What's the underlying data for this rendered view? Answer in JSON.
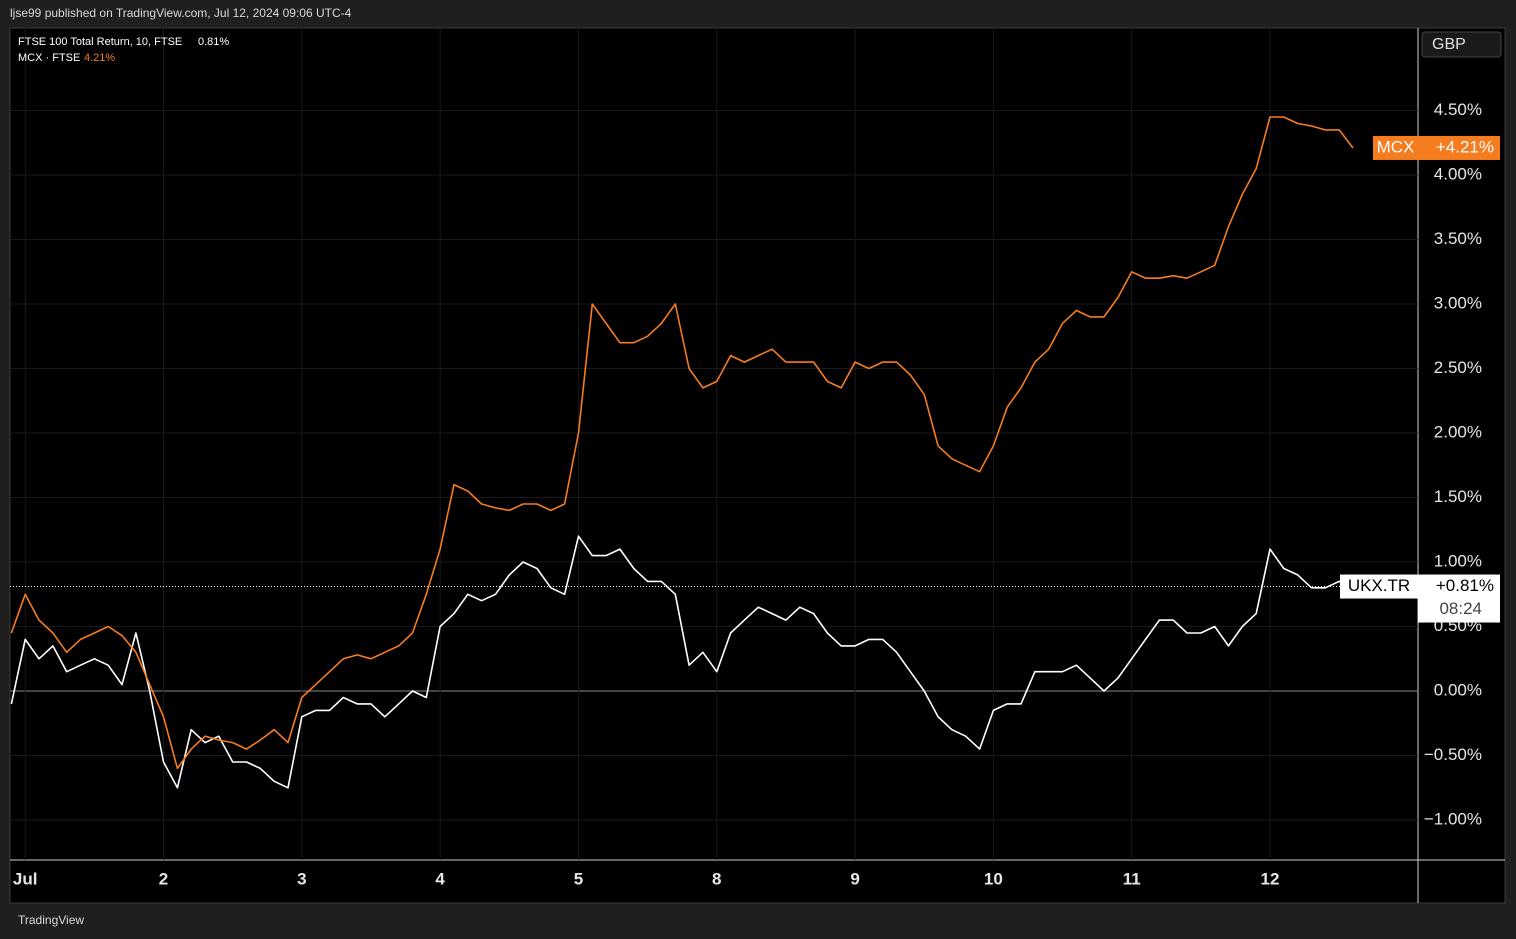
{
  "chart_data": {
    "type": "line",
    "header": "ljse99 published on TradingView.com, Jul 12, 2024 09:06 UTC-4",
    "currency": "GBP",
    "footer": "TradingView",
    "grid": true,
    "xlim": [
      -0.11,
      10.07
    ],
    "ylim": [
      -1.31,
      5.14
    ],
    "xticks": [
      {
        "value": 0,
        "label": "Jul"
      },
      {
        "value": 1,
        "label": "2"
      },
      {
        "value": 2,
        "label": "3"
      },
      {
        "value": 3,
        "label": "4"
      },
      {
        "value": 4,
        "label": "5"
      },
      {
        "value": 5,
        "label": "8"
      },
      {
        "value": 6,
        "label": "9"
      },
      {
        "value": 7,
        "label": "10"
      },
      {
        "value": 8,
        "label": "11"
      },
      {
        "value": 9,
        "label": "12"
      }
    ],
    "yticks": [
      {
        "value": -1,
        "label": "−1.00%"
      },
      {
        "value": -0.5,
        "label": "−0.50%"
      },
      {
        "value": 0,
        "label": "0.00%"
      },
      {
        "value": 0.5,
        "label": "0.50%"
      },
      {
        "value": 1,
        "label": "1.00%"
      },
      {
        "value": 1.5,
        "label": "1.50%"
      },
      {
        "value": 2,
        "label": "2.00%"
      },
      {
        "value": 2.5,
        "label": "2.50%"
      },
      {
        "value": 3,
        "label": "3.00%"
      },
      {
        "value": 3.5,
        "label": "3.50%"
      },
      {
        "value": 4,
        "label": "4.00%"
      },
      {
        "value": 4.5,
        "label": "4.50%"
      }
    ],
    "x": [
      -0.1,
      0,
      0.1,
      0.2,
      0.3,
      0.4,
      0.5,
      0.6,
      0.7,
      0.8,
      0.9,
      1,
      1.1,
      1.2,
      1.3,
      1.4,
      1.5,
      1.6,
      1.7,
      1.8,
      1.9,
      2,
      2.1,
      2.2,
      2.3,
      2.4,
      2.5,
      2.6,
      2.7,
      2.8,
      2.9,
      3,
      3.1,
      3.2,
      3.3,
      3.4,
      3.5,
      3.6,
      3.7,
      3.8,
      3.9,
      4,
      4.1,
      4.2,
      4.3,
      4.4,
      4.5,
      4.6,
      4.7,
      4.8,
      4.9,
      5,
      5.1,
      5.2,
      5.3,
      5.4,
      5.5,
      5.6,
      5.7,
      5.8,
      5.9,
      6,
      6.1,
      6.2,
      6.3,
      6.4,
      6.5,
      6.6,
      6.7,
      6.8,
      6.9,
      7,
      7.1,
      7.2,
      7.3,
      7.4,
      7.5,
      7.6,
      7.7,
      7.8,
      7.9,
      8,
      8.1,
      8.2,
      8.3,
      8.4,
      8.5,
      8.6,
      8.7,
      8.8,
      8.9,
      9,
      9.1,
      9.2,
      9.3,
      9.4,
      9.5,
      9.6
    ],
    "series": [
      {
        "name": "FTSE 100 Total Return, 10, FTSE",
        "legend_value": "0.81%",
        "tag": "UKX.TR",
        "tag_value": "+0.81%",
        "countdown": "08:24",
        "color": "#ffffff",
        "values": [
          -0.1,
          0.4,
          0.25,
          0.35,
          0.15,
          0.2,
          0.25,
          0.2,
          0.05,
          0.45,
          0.0,
          -0.55,
          -0.75,
          -0.3,
          -0.4,
          -0.35,
          -0.55,
          -0.55,
          -0.6,
          -0.7,
          -0.75,
          -0.2,
          -0.15,
          -0.15,
          -0.05,
          -0.1,
          -0.1,
          -0.2,
          -0.1,
          0.0,
          -0.05,
          0.5,
          0.6,
          0.75,
          0.7,
          0.75,
          0.9,
          1.0,
          0.95,
          0.8,
          0.75,
          1.2,
          1.05,
          1.05,
          1.1,
          0.95,
          0.85,
          0.85,
          0.75,
          0.2,
          0.3,
          0.15,
          0.45,
          0.55,
          0.65,
          0.6,
          0.55,
          0.65,
          0.6,
          0.45,
          0.35,
          0.35,
          0.4,
          0.4,
          0.3,
          0.15,
          0.0,
          -0.2,
          -0.3,
          -0.35,
          -0.45,
          -0.15,
          -0.1,
          -0.1,
          0.15,
          0.15,
          0.15,
          0.2,
          0.1,
          0.0,
          0.1,
          0.25,
          0.4,
          0.55,
          0.55,
          0.45,
          0.45,
          0.5,
          0.35,
          0.5,
          0.6,
          1.1,
          0.95,
          0.9,
          0.8,
          0.8,
          0.85,
          0.81
        ]
      },
      {
        "name": "MCX · FTSE",
        "legend_value": "4.21%",
        "tag": "MCX",
        "tag_value": "+4.21%",
        "color": "#f57c1f",
        "values": [
          0.45,
          0.75,
          0.55,
          0.45,
          0.3,
          0.4,
          0.45,
          0.5,
          0.43,
          0.3,
          0.05,
          -0.2,
          -0.6,
          -0.45,
          -0.35,
          -0.38,
          -0.4,
          -0.45,
          -0.38,
          -0.3,
          -0.4,
          -0.05,
          0.05,
          0.15,
          0.25,
          0.28,
          0.25,
          0.3,
          0.35,
          0.45,
          0.75,
          1.1,
          1.6,
          1.55,
          1.45,
          1.42,
          1.4,
          1.45,
          1.45,
          1.4,
          1.45,
          2.0,
          3.0,
          2.85,
          2.7,
          2.7,
          2.75,
          2.85,
          3.0,
          2.5,
          2.35,
          2.4,
          2.6,
          2.55,
          2.6,
          2.65,
          2.55,
          2.55,
          2.55,
          2.4,
          2.35,
          2.55,
          2.5,
          2.55,
          2.55,
          2.45,
          2.3,
          1.9,
          1.8,
          1.75,
          1.7,
          1.9,
          2.2,
          2.35,
          2.55,
          2.65,
          2.85,
          2.95,
          2.9,
          2.9,
          3.05,
          3.25,
          3.2,
          3.2,
          3.22,
          3.2,
          3.25,
          3.3,
          3.6,
          3.85,
          4.05,
          4.45,
          4.45,
          4.4,
          4.38,
          4.35,
          4.35,
          4.21
        ]
      }
    ]
  }
}
